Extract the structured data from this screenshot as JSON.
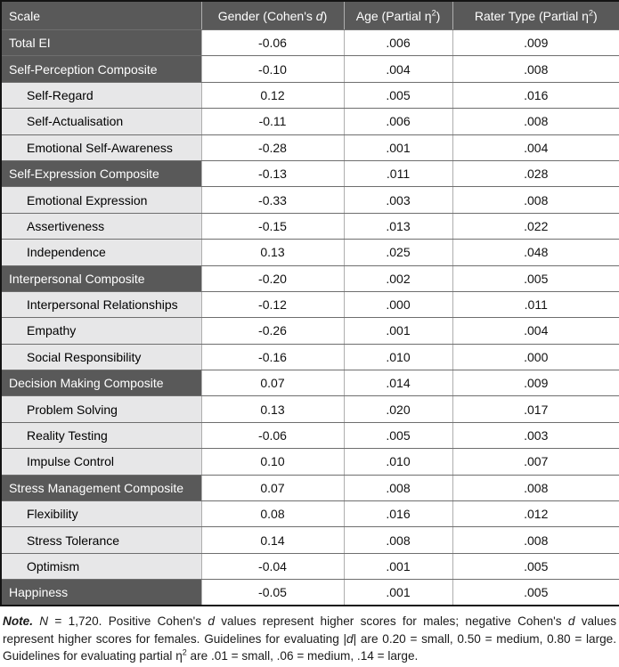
{
  "colors": {
    "header_bg": "#595959",
    "subrow_bg": "#e7e7e8",
    "header_text": "#ffffff",
    "outer_border": "#141414",
    "row_border": "#6e6e6e",
    "col_border": "#aeaeae"
  },
  "table": {
    "header": {
      "scale": "Scale",
      "gender": [
        {
          "t": "Gender (Cohen's ",
          "s": "n"
        },
        {
          "t": "d",
          "s": "i"
        },
        {
          "t": ")",
          "s": "n"
        }
      ],
      "age": [
        {
          "t": "Age (Partial η",
          "s": "n"
        },
        {
          "t": "2",
          "s": "sup"
        },
        {
          "t": ")",
          "s": "n"
        }
      ],
      "rater": [
        {
          "t": "Rater Type (Partial η",
          "s": "n"
        },
        {
          "t": "2",
          "s": "sup"
        },
        {
          "t": ")",
          "s": "n"
        }
      ]
    },
    "rows": [
      {
        "label": "Total EI",
        "type": "dark",
        "gender": "-0.06",
        "age": ".006",
        "rater": ".009"
      },
      {
        "label": "Self-Perception Composite",
        "type": "dark",
        "gender": "-0.10",
        "age": ".004",
        "rater": ".008"
      },
      {
        "label": "Self-Regard",
        "type": "light",
        "gender": "0.12",
        "age": ".005",
        "rater": ".016"
      },
      {
        "label": "Self-Actualisation",
        "type": "light",
        "gender": "-0.11",
        "age": ".006",
        "rater": ".008"
      },
      {
        "label": "Emotional Self-Awareness",
        "type": "light",
        "gender": "-0.28",
        "age": ".001",
        "rater": ".004"
      },
      {
        "label": "Self-Expression Composite",
        "type": "dark",
        "gender": "-0.13",
        "age": ".011",
        "rater": ".028"
      },
      {
        "label": "Emotional Expression",
        "type": "light",
        "gender": "-0.33",
        "age": ".003",
        "rater": ".008"
      },
      {
        "label": "Assertiveness",
        "type": "light",
        "gender": "-0.15",
        "age": ".013",
        "rater": ".022"
      },
      {
        "label": "Independence",
        "type": "light",
        "gender": "0.13",
        "age": ".025",
        "rater": ".048"
      },
      {
        "label": "Interpersonal Composite",
        "type": "dark",
        "gender": "-0.20",
        "age": ".002",
        "rater": ".005"
      },
      {
        "label": "Interpersonal Relationships",
        "type": "light",
        "gender": "-0.12",
        "age": ".000",
        "rater": ".011"
      },
      {
        "label": "Empathy",
        "type": "light",
        "gender": "-0.26",
        "age": ".001",
        "rater": ".004"
      },
      {
        "label": "Social Responsibility",
        "type": "light",
        "gender": "-0.16",
        "age": ".010",
        "rater": ".000"
      },
      {
        "label": "Decision Making Composite",
        "type": "dark",
        "gender": "0.07",
        "age": ".014",
        "rater": ".009"
      },
      {
        "label": "Problem Solving",
        "type": "light",
        "gender": "0.13",
        "age": ".020",
        "rater": ".017"
      },
      {
        "label": "Reality Testing",
        "type": "light",
        "gender": "-0.06",
        "age": ".005",
        "rater": ".003"
      },
      {
        "label": "Impulse Control",
        "type": "light",
        "gender": "0.10",
        "age": ".010",
        "rater": ".007"
      },
      {
        "label": "Stress Management Composite",
        "type": "dark",
        "gender": "0.07",
        "age": ".008",
        "rater": ".008"
      },
      {
        "label": "Flexibility",
        "type": "light",
        "gender": "0.08",
        "age": ".016",
        "rater": ".012"
      },
      {
        "label": "Stress Tolerance",
        "type": "light",
        "gender": "0.14",
        "age": ".008",
        "rater": ".008"
      },
      {
        "label": "Optimism",
        "type": "light",
        "gender": "-0.04",
        "age": ".001",
        "rater": ".005"
      },
      {
        "label": "Happiness",
        "type": "dark",
        "gender": "-0.05",
        "age": ".001",
        "rater": ".005"
      }
    ]
  },
  "note": {
    "segments": [
      {
        "t": "Note.",
        "s": "bi"
      },
      {
        "t": " ",
        "s": "n"
      },
      {
        "t": "N",
        "s": "i"
      },
      {
        "t": " = 1,720. Positive Cohen's ",
        "s": "n"
      },
      {
        "t": "d",
        "s": "i"
      },
      {
        "t": " values represent higher scores for males; negative Cohen's ",
        "s": "n"
      },
      {
        "t": "d",
        "s": "i"
      },
      {
        "t": " values represent higher scores for females. Guidelines for evaluating |",
        "s": "n"
      },
      {
        "t": "d",
        "s": "i"
      },
      {
        "t": "| are 0.20 = small, 0.50 = medium, 0.80 = large. Guidelines for evaluating partial η",
        "s": "n"
      },
      {
        "t": "2",
        "s": "sup"
      },
      {
        "t": " are .01 = small, .06 = medium, .14 = large.",
        "s": "n"
      }
    ]
  }
}
